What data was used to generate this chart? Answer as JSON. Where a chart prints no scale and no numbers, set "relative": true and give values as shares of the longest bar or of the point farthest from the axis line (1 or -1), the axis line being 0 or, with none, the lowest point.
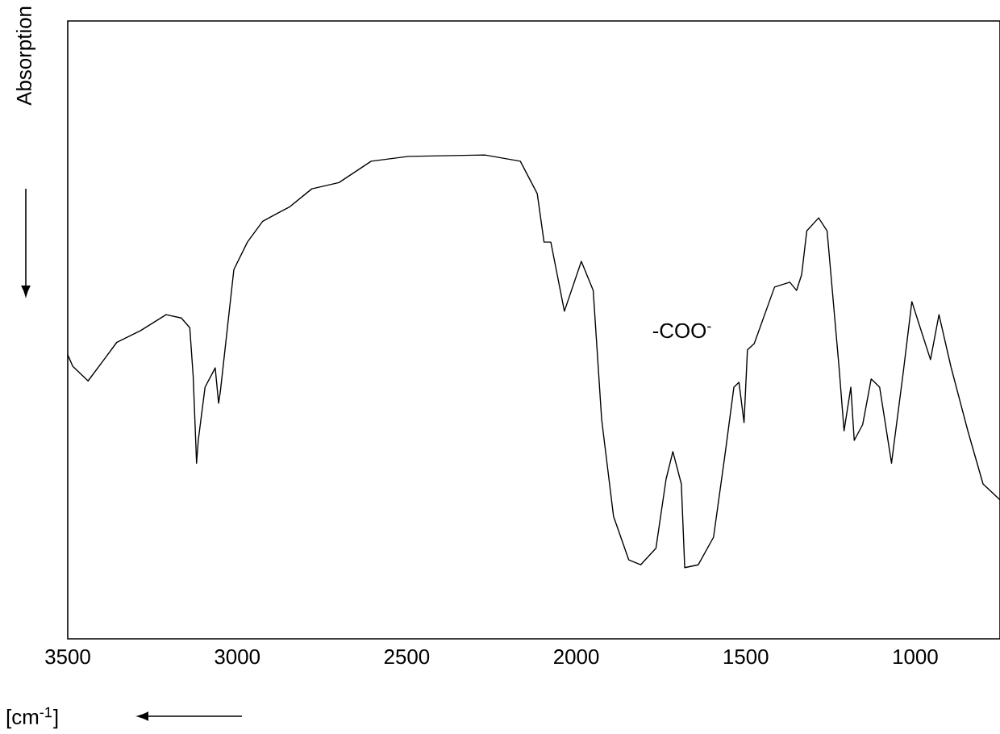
{
  "chart_data": {
    "type": "line",
    "relative": true,
    "marker": "none",
    "line_style": "solid",
    "ylabel": "Absorption",
    "xlabel": "[cm$^{-1}$]",
    "xlim": [
      3500,
      750
    ],
    "xticks": [
      3500,
      3000,
      2500,
      2000,
      1500,
      1000
    ],
    "x": [
      3500,
      3485,
      3440,
      3390,
      3355,
      3285,
      3210,
      3165,
      3140,
      3130,
      3120,
      3115,
      3095,
      3065,
      3055,
      3050,
      3010,
      2970,
      2925,
      2880,
      2845,
      2780,
      2700,
      2605,
      2495,
      2270,
      2165,
      2115,
      2095,
      2075,
      2035,
      1985,
      1950,
      1925,
      1890,
      1845,
      1810,
      1765,
      1735,
      1715,
      1690,
      1680,
      1640,
      1595,
      1560,
      1535,
      1520,
      1505,
      1495,
      1475,
      1415,
      1370,
      1350,
      1335,
      1320,
      1285,
      1260,
      1225,
      1210,
      1190,
      1180,
      1155,
      1130,
      1105,
      1070,
      1035,
      1010,
      990,
      955,
      930,
      895,
      845,
      800,
      750
    ],
    "values": [
      0.587,
      0.563,
      0.533,
      0.58,
      0.613,
      0.637,
      0.67,
      0.663,
      0.643,
      0.543,
      0.363,
      0.41,
      0.52,
      0.56,
      0.487,
      0.51,
      0.763,
      0.82,
      0.863,
      0.88,
      0.893,
      0.93,
      0.943,
      0.987,
      0.997,
      1,
      0.987,
      0.92,
      0.82,
      0.82,
      0.677,
      0.78,
      0.72,
      0.453,
      0.253,
      0.163,
      0.153,
      0.187,
      0.33,
      0.387,
      0.32,
      0.147,
      0.153,
      0.21,
      0.387,
      0.52,
      0.53,
      0.447,
      0.597,
      0.61,
      0.727,
      0.737,
      0.72,
      0.753,
      0.843,
      0.87,
      0.843,
      0.563,
      0.43,
      0.52,
      0.41,
      0.443,
      0.537,
      0.52,
      0.363,
      0.553,
      0.697,
      0.653,
      0.577,
      0.67,
      0.563,
      0.43,
      0.32,
      0.287
    ],
    "annotations": [
      "-COO$^{-}$"
    ]
  }
}
